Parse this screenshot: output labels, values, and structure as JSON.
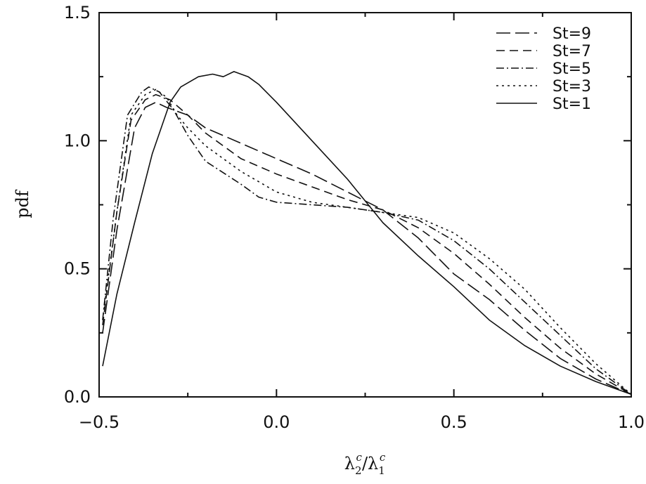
{
  "chart_data": {
    "type": "line",
    "xlabel": "λ₂ᶜ/λ₁ᶜ",
    "xlabel_parts": {
      "a": "λ",
      "a_sub": "2",
      "a_sup": "c",
      "sep": "/",
      "b": "λ",
      "b_sub": "1",
      "b_sup": "c"
    },
    "ylabel": "pdf",
    "xlim": [
      -0.5,
      1.0
    ],
    "ylim": [
      0.0,
      1.5
    ],
    "xticks": [
      -0.5,
      0.0,
      0.5,
      1.0
    ],
    "xtick_labels": [
      "−0.5",
      "0.0",
      "0.5",
      "1.0"
    ],
    "yticks": [
      0.0,
      0.5,
      1.0,
      1.5
    ],
    "ytick_labels": [
      "0.0",
      "0.5",
      "1.0",
      "1.5"
    ],
    "grid": false,
    "legend_position": "top-right",
    "series": [
      {
        "name": "St=9",
        "dash": "long-dash",
        "x": [
          -0.49,
          -0.45,
          -0.4,
          -0.37,
          -0.34,
          -0.31,
          -0.25,
          -0.2,
          -0.15,
          -0.1,
          0.0,
          0.1,
          0.2,
          0.3,
          0.4,
          0.5,
          0.6,
          0.7,
          0.8,
          0.9,
          1.0
        ],
        "y": [
          0.25,
          0.65,
          1.05,
          1.13,
          1.15,
          1.13,
          1.1,
          1.05,
          1.02,
          0.99,
          0.93,
          0.87,
          0.8,
          0.73,
          0.62,
          0.48,
          0.38,
          0.26,
          0.15,
          0.07,
          0.01
        ]
      },
      {
        "name": "St=7",
        "dash": "dash",
        "x": [
          -0.49,
          -0.45,
          -0.41,
          -0.37,
          -0.34,
          -0.3,
          -0.25,
          -0.2,
          -0.1,
          0.0,
          0.1,
          0.2,
          0.3,
          0.4,
          0.5,
          0.6,
          0.7,
          0.8,
          0.9,
          1.0
        ],
        "y": [
          0.28,
          0.72,
          1.08,
          1.16,
          1.18,
          1.16,
          1.1,
          1.03,
          0.93,
          0.87,
          0.82,
          0.77,
          0.73,
          0.66,
          0.56,
          0.44,
          0.31,
          0.19,
          0.09,
          0.01
        ]
      },
      {
        "name": "St=5",
        "dash": "dash-dot",
        "x": [
          -0.49,
          -0.46,
          -0.42,
          -0.38,
          -0.36,
          -0.33,
          -0.29,
          -0.25,
          -0.2,
          -0.1,
          -0.05,
          0.0,
          0.1,
          0.2,
          0.3,
          0.4,
          0.5,
          0.6,
          0.7,
          0.8,
          0.9,
          1.0
        ],
        "y": [
          0.3,
          0.7,
          1.1,
          1.19,
          1.21,
          1.19,
          1.12,
          1.02,
          0.92,
          0.83,
          0.78,
          0.76,
          0.75,
          0.74,
          0.72,
          0.69,
          0.61,
          0.5,
          0.37,
          0.24,
          0.11,
          0.01
        ]
      },
      {
        "name": "St=3",
        "dash": "dot",
        "x": [
          -0.49,
          -0.45,
          -0.41,
          -0.37,
          -0.34,
          -0.31,
          -0.28,
          -0.25,
          -0.2,
          -0.1,
          0.0,
          0.1,
          0.2,
          0.3,
          0.4,
          0.5,
          0.6,
          0.7,
          0.8,
          0.9,
          1.0
        ],
        "y": [
          0.3,
          0.72,
          1.1,
          1.18,
          1.2,
          1.17,
          1.1,
          1.05,
          0.98,
          0.88,
          0.8,
          0.76,
          0.74,
          0.72,
          0.7,
          0.64,
          0.54,
          0.42,
          0.27,
          0.13,
          0.01
        ]
      },
      {
        "name": "St=1",
        "dash": "solid",
        "x": [
          -0.49,
          -0.45,
          -0.4,
          -0.35,
          -0.3,
          -0.27,
          -0.22,
          -0.18,
          -0.15,
          -0.12,
          -0.08,
          -0.05,
          0.0,
          0.1,
          0.2,
          0.3,
          0.4,
          0.5,
          0.6,
          0.7,
          0.8,
          0.9,
          1.0
        ],
        "y": [
          0.12,
          0.4,
          0.68,
          0.95,
          1.15,
          1.21,
          1.25,
          1.26,
          1.25,
          1.27,
          1.25,
          1.22,
          1.15,
          1.0,
          0.85,
          0.68,
          0.55,
          0.43,
          0.3,
          0.2,
          0.12,
          0.06,
          0.01
        ]
      }
    ]
  }
}
